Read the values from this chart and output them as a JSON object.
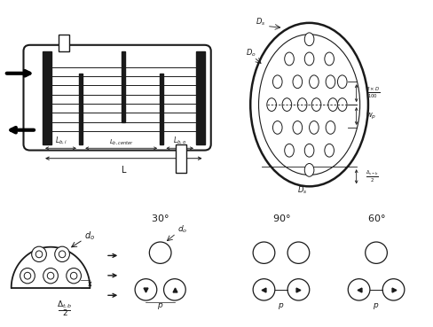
{
  "bg_color": "#ffffff",
  "line_color": "#1a1a1a",
  "fig_width": 4.89,
  "fig_height": 3.69,
  "dpi": 100
}
